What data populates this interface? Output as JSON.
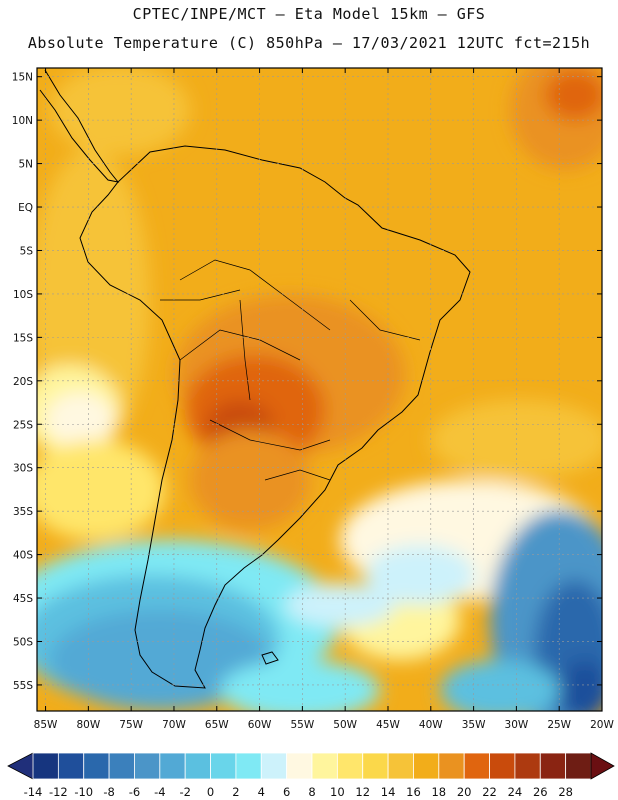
{
  "header": {
    "line1": "CPTEC/INPE/MCT –  Eta Model 15km – GFS",
    "line2": "Absolute Temperature (C) 850hPa – 17/03/2021 12UTC fct=215h"
  },
  "axes": {
    "lat_labels": [
      "15N",
      "10N",
      "5N",
      "EQ",
      "5S",
      "10S",
      "15S",
      "20S",
      "25S",
      "30S",
      "35S",
      "40S",
      "45S",
      "50S",
      "55S"
    ],
    "lat_values": [
      15,
      10,
      5,
      0,
      -5,
      -10,
      -15,
      -20,
      -25,
      -30,
      -35,
      -40,
      -45,
      -50,
      -55
    ],
    "lon_labels": [
      "85W",
      "80W",
      "75W",
      "70W",
      "65W",
      "60W",
      "55W",
      "50W",
      "45W",
      "40W",
      "35W",
      "30W",
      "25W",
      "20W"
    ],
    "lon_values": [
      -85,
      -80,
      -75,
      -70,
      -65,
      -60,
      -55,
      -50,
      -45,
      -40,
      -35,
      -30,
      -25,
      -20
    ],
    "lon_range": [
      -86,
      -20
    ],
    "lat_range": [
      -58,
      16
    ],
    "grid": true
  },
  "colorbar": {
    "labels": [
      "-14",
      "-12",
      "-10",
      "-8",
      "-6",
      "-4",
      "-2",
      "0",
      "2",
      "4",
      "6",
      "8",
      "10",
      "12",
      "14",
      "16",
      "18",
      "20",
      "22",
      "24",
      "26",
      "28"
    ],
    "colors": [
      "#16357f",
      "#1f4f9b",
      "#2a68ac",
      "#3b80bc",
      "#4b95c8",
      "#52a9d5",
      "#5bc0e0",
      "#69d5ea",
      "#7fe9f4",
      "#cdf2fb",
      "#fff8e1",
      "#fff59d",
      "#ffe66b",
      "#fbd84a",
      "#f6c338",
      "#f2ad1a",
      "#ea9220",
      "#e0650f",
      "#c94b0c",
      "#ad3a10",
      "#8a2412",
      "#6e1d14"
    ],
    "under_color": "#202f7a",
    "over_color": "#6a0f12"
  },
  "legend": {
    "land_border_color": "#000000",
    "grid_color": "#9a9a9a"
  }
}
